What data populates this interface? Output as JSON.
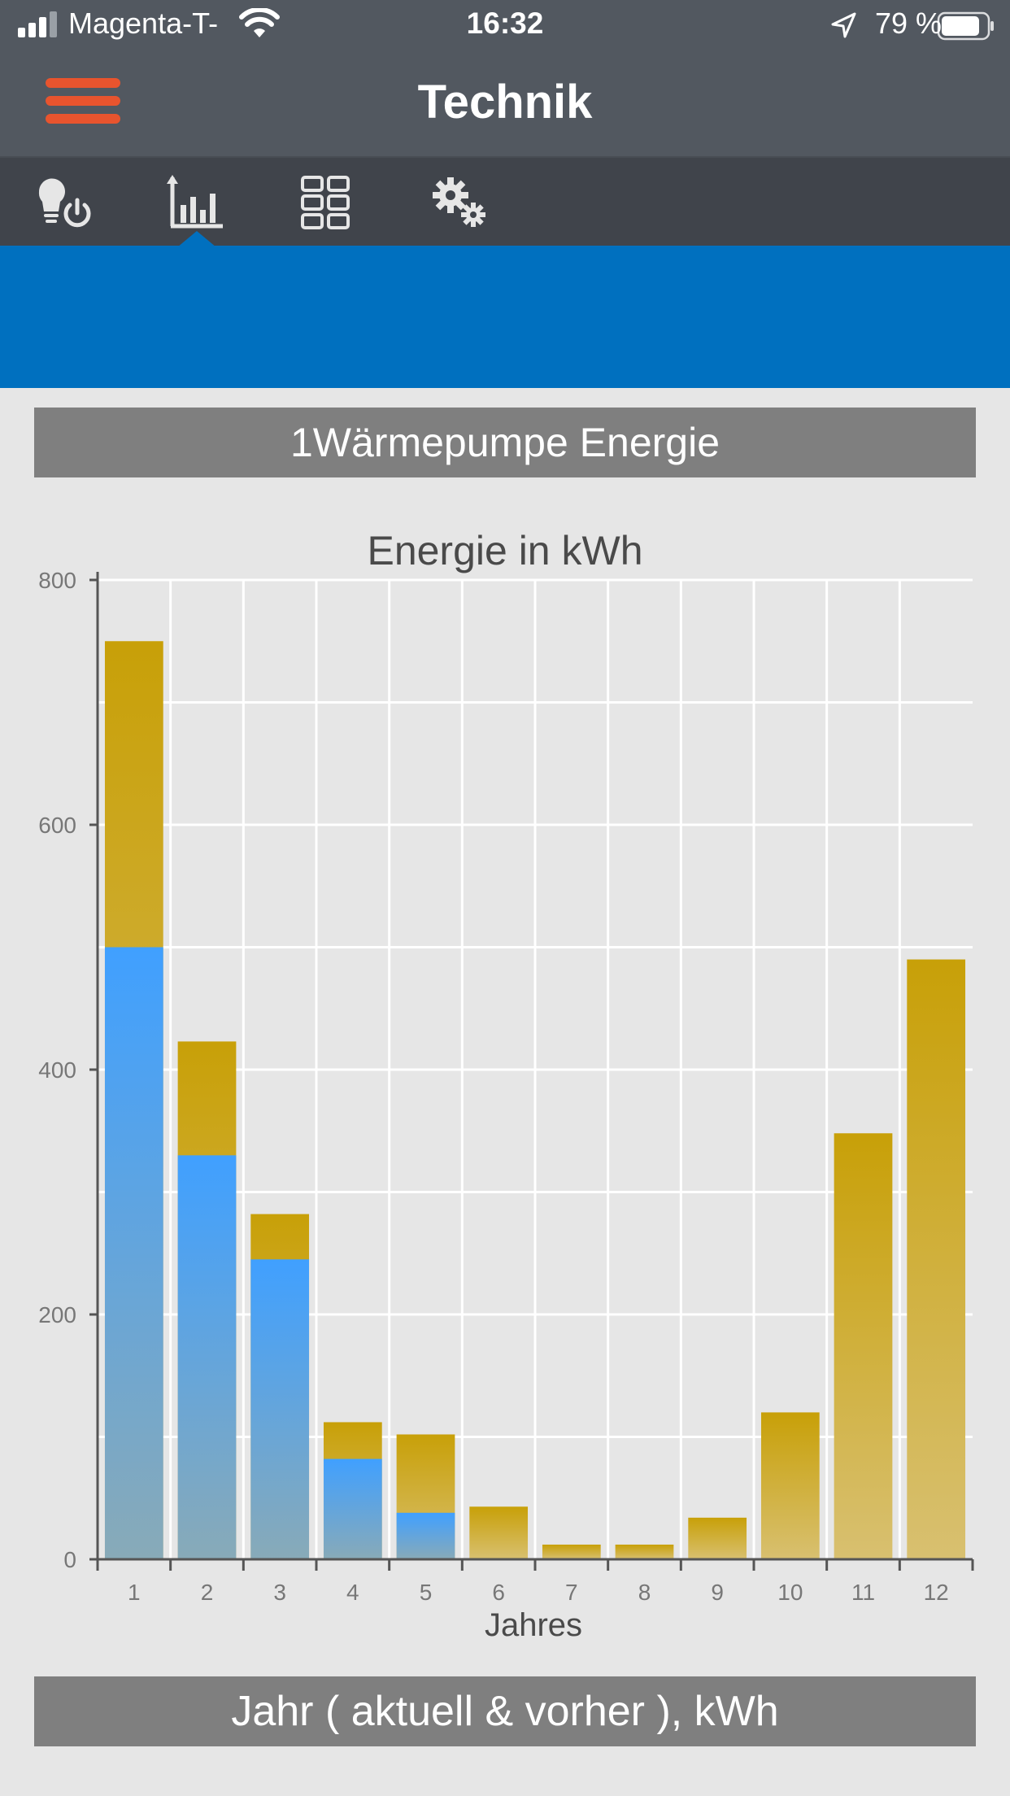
{
  "status_bar": {
    "carrier": "Magenta-T-",
    "time": "16:32",
    "battery": "79 %"
  },
  "nav": {
    "title": "Technik",
    "tabs": [
      {
        "icon": "bulb-power-icon"
      },
      {
        "icon": "bar-chart-icon",
        "active": true
      },
      {
        "icon": "grid-icon"
      },
      {
        "icon": "gears-icon"
      }
    ]
  },
  "colors": {
    "accent_blue": "#0070bf",
    "menu_orange": "#e8542e",
    "series_current": "#c9a00a",
    "series_previous": "#3f9df5"
  },
  "widget_title": "1Wärmepumpe Energie",
  "footer_label": "Jahr ( aktuell & vorher ), kWh",
  "chart_data": {
    "type": "bar",
    "title": "Energie in kWh",
    "xlabel": "Jahres",
    "ylabel": "",
    "ylim": [
      0,
      800
    ],
    "yticks": [
      0,
      200,
      400,
      600,
      800
    ],
    "grid": true,
    "categories": [
      "1",
      "2",
      "3",
      "4",
      "5",
      "6",
      "7",
      "8",
      "9",
      "10",
      "11",
      "12"
    ],
    "series": [
      {
        "values": [
          750,
          423,
          282,
          112,
          102,
          43,
          12,
          12,
          34,
          120,
          348,
          490
        ]
      },
      {
        "values": [
          500,
          330,
          245,
          82,
          38,
          0,
          0,
          0,
          0,
          0,
          0,
          0
        ]
      }
    ]
  }
}
